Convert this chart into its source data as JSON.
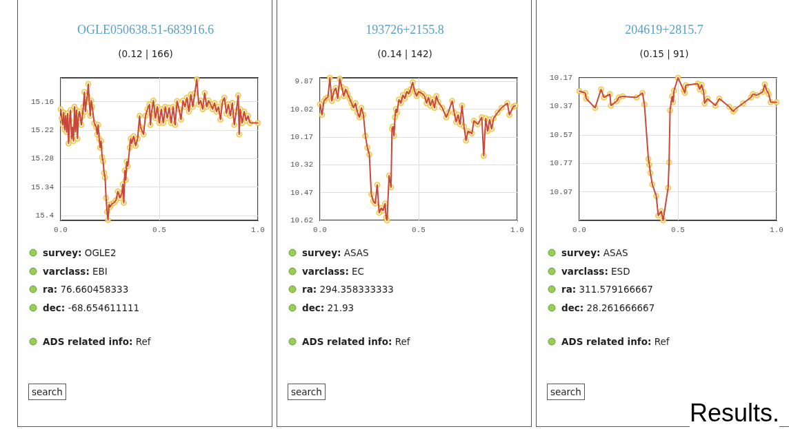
{
  "chart_data": [
    {
      "type": "line",
      "title": "OGLE050638.51-683916.6",
      "subtitle": "(0.12 | 166)",
      "xlim": [
        0,
        1
      ],
      "xticks": [
        {
          "value": 0,
          "label": "0.0"
        },
        {
          "value": 0.5,
          "label": "0.5"
        },
        {
          "value": 1,
          "label": "1.0"
        }
      ],
      "ylim": [
        15.41,
        15.11
      ],
      "yticks": [
        15.16,
        15.22,
        15.28,
        15.34,
        15.4
      ],
      "grid": true,
      "line_style": "solid",
      "x": [
        0,
        0.005,
        0.01,
        0.015,
        0.02,
        0.025,
        0.03,
        0.035,
        0.04,
        0.045,
        0.05,
        0.055,
        0.06,
        0.065,
        0.07,
        0.075,
        0.08,
        0.085,
        0.09,
        0.095,
        0.1,
        0.105,
        0.11,
        0.115,
        0.12,
        0.125,
        0.13,
        0.135,
        0.14,
        0.145,
        0.15,
        0.155,
        0.16,
        0.17,
        0.18,
        0.185,
        0.19,
        0.195,
        0.2,
        0.205,
        0.21,
        0.215,
        0.22,
        0.225,
        0.23,
        0.235,
        0.24,
        0.245,
        0.25,
        0.26,
        0.27,
        0.28,
        0.29,
        0.3,
        0.31,
        0.315,
        0.32,
        0.325,
        0.33,
        0.335,
        0.34,
        0.35,
        0.355,
        0.36,
        0.37,
        0.38,
        0.39,
        0.4,
        0.405,
        0.41,
        0.42,
        0.43,
        0.44,
        0.45,
        0.455,
        0.46,
        0.47,
        0.48,
        0.49,
        0.5,
        0.51,
        0.52,
        0.53,
        0.54,
        0.55,
        0.56,
        0.57,
        0.58,
        0.59,
        0.6,
        0.61,
        0.62,
        0.63,
        0.64,
        0.65,
        0.66,
        0.67,
        0.68,
        0.69,
        0.7,
        0.71,
        0.72,
        0.73,
        0.74,
        0.75,
        0.76,
        0.77,
        0.78,
        0.79,
        0.8,
        0.81,
        0.82,
        0.83,
        0.84,
        0.85,
        0.86,
        0.87,
        0.88,
        0.89,
        0.9,
        0.905,
        0.91,
        0.92,
        0.93,
        0.94,
        0.95,
        0.96,
        1.0
      ],
      "series": [
        {
          "marker": "none",
          "color": "#c8473c",
          "values": [
            15.176,
            15.195,
            15.209,
            15.183,
            15.219,
            15.19,
            15.224,
            15.185,
            15.248,
            15.2,
            15.178,
            15.238,
            15.214,
            15.243,
            15.171,
            15.224,
            15.178,
            15.238,
            15.19,
            15.181,
            15.195,
            15.209,
            15.19,
            15.171,
            15.14,
            15.181,
            15.161,
            15.147,
            15.123,
            15.161,
            15.19,
            15.158,
            15.171,
            15.205,
            15.214,
            15.229,
            15.209,
            15.238,
            15.257,
            15.243,
            15.277,
            15.286,
            15.31,
            15.32,
            15.363,
            15.392,
            15.409,
            15.377,
            15.382,
            15.375,
            15.373,
            15.368,
            15.349,
            15.363,
            15.353,
            15.334,
            15.373,
            15.305,
            15.325,
            15.286,
            15.296,
            15.257,
            15.238,
            15.248,
            15.233,
            15.253,
            15.238,
            15.19,
            15.214,
            15.219,
            15.229,
            15.19,
            15.176,
            15.166,
            15.209,
            15.185,
            15.158,
            15.195,
            15.171,
            15.205,
            15.176,
            15.205,
            15.171,
            15.195,
            15.173,
            15.205,
            15.171,
            15.209,
            15.159,
            15.176,
            15.198,
            15.158,
            15.171,
            15.152,
            15.181,
            15.145,
            15.171,
            15.142,
            15.113,
            15.166,
            15.158,
            15.176,
            15.142,
            15.171,
            15.158,
            15.166,
            15.176,
            15.163,
            15.181,
            15.171,
            15.198,
            15.161,
            15.152,
            15.185,
            15.166,
            15.19,
            15.163,
            15.209,
            15.181,
            15.147,
            15.229,
            15.176,
            15.205,
            15.181,
            15.2,
            15.19,
            15.205,
            15.205
          ]
        },
        {
          "type": "scatter",
          "marker": "circle",
          "color": "#f0c030",
          "values": [
            15.176,
            15.195,
            15.209,
            15.183,
            15.219,
            15.19,
            15.224,
            15.185,
            15.248,
            15.2,
            15.178,
            15.238,
            15.214,
            15.243,
            15.171,
            15.224,
            15.178,
            15.238,
            15.19,
            15.181,
            15.195,
            15.209,
            15.19,
            15.171,
            15.14,
            15.181,
            15.161,
            15.147,
            15.123,
            15.161,
            15.19,
            15.158,
            15.171,
            15.205,
            15.214,
            15.229,
            15.209,
            15.238,
            15.257,
            15.243,
            15.277,
            15.286,
            15.31,
            15.32,
            15.363,
            15.392,
            15.409,
            15.377,
            15.382,
            15.375,
            15.373,
            15.368,
            15.349,
            15.363,
            15.353,
            15.334,
            15.373,
            15.305,
            15.325,
            15.286,
            15.296,
            15.257,
            15.238,
            15.248,
            15.233,
            15.253,
            15.238,
            15.19,
            15.214,
            15.219,
            15.229,
            15.19,
            15.176,
            15.166,
            15.209,
            15.185,
            15.158,
            15.195,
            15.171,
            15.205,
            15.176,
            15.205,
            15.171,
            15.195,
            15.173,
            15.205,
            15.171,
            15.209,
            15.159,
            15.176,
            15.198,
            15.158,
            15.171,
            15.152,
            15.181,
            15.145,
            15.171,
            15.142,
            15.113,
            15.166,
            15.158,
            15.176,
            15.142,
            15.171,
            15.158,
            15.166,
            15.176,
            15.163,
            15.181,
            15.171,
            15.198,
            15.161,
            15.152,
            15.185,
            15.166,
            15.19,
            15.163,
            15.209,
            15.181,
            15.147,
            15.229,
            15.176,
            15.205,
            15.181,
            15.2,
            15.19,
            15.205,
            15.205
          ]
        }
      ],
      "annotations": [
        "survey: OGLE2",
        "varclass: EBI",
        "ra: 76.660458333",
        "dec: -68.654611111",
        "ADS related info: Ref",
        "search"
      ]
    },
    {
      "type": "line",
      "title": "193726+2155.8",
      "subtitle": "(0.14 | 142)",
      "xlim": [
        0,
        1
      ],
      "xticks": [
        {
          "value": 0,
          "label": "0.0"
        },
        {
          "value": 0.5,
          "label": "0.5"
        },
        {
          "value": 1,
          "label": "1.0"
        }
      ],
      "ylim": [
        10.62,
        9.85
      ],
      "yticks": [
        9.87,
        10.02,
        10.17,
        10.32,
        10.47,
        10.62
      ],
      "grid": true,
      "line_style": "solid",
      "x": [
        0,
        0.01,
        0.02,
        0.03,
        0.04,
        0.05,
        0.06,
        0.07,
        0.08,
        0.09,
        0.1,
        0.11,
        0.12,
        0.13,
        0.14,
        0.15,
        0.16,
        0.17,
        0.18,
        0.19,
        0.2,
        0.21,
        0.22,
        0.23,
        0.24,
        0.25,
        0.26,
        0.27,
        0.28,
        0.29,
        0.3,
        0.31,
        0.32,
        0.33,
        0.335,
        0.34,
        0.35,
        0.36,
        0.365,
        0.37,
        0.375,
        0.38,
        0.385,
        0.39,
        0.4,
        0.41,
        0.42,
        0.43,
        0.44,
        0.45,
        0.46,
        0.47,
        0.48,
        0.49,
        0.5,
        0.52,
        0.53,
        0.54,
        0.55,
        0.56,
        0.57,
        0.58,
        0.59,
        0.6,
        0.62,
        0.64,
        0.65,
        0.67,
        0.68,
        0.69,
        0.7,
        0.71,
        0.72,
        0.73,
        0.74,
        0.75,
        0.77,
        0.78,
        0.8,
        0.82,
        0.83,
        0.84,
        0.85,
        0.86,
        0.87,
        0.88,
        0.9,
        0.92,
        0.95,
        0.96,
        0.98,
        0.99
      ],
      "series": [
        {
          "marker": "none",
          "color": "#c8473c",
          "values": [
            9.993,
            10.05,
            9.975,
            9.962,
            9.956,
            9.85,
            9.975,
            9.924,
            9.905,
            9.962,
            9.855,
            9.899,
            9.949,
            9.911,
            9.937,
            9.962,
            9.987,
            10.012,
            9.987,
            10.038,
            10.063,
            10.012,
            10.05,
            10.164,
            10.227,
            10.264,
            10.479,
            10.516,
            10.529,
            10.428,
            10.579,
            10.554,
            10.567,
            10.529,
            10.605,
            10.62,
            10.378,
            10.441,
            10.126,
            10.113,
            10.164,
            10.063,
            10.019,
            10.038,
            9.968,
            9.987,
            9.943,
            9.962,
            9.924,
            9.937,
            9.911,
            9.874,
            9.924,
            9.949,
            9.924,
            9.937,
            9.949,
            9.987,
            9.956,
            10.0,
            9.968,
            10.012,
            9.949,
            9.981,
            10.012,
            10.063,
            10.038,
            9.975,
            10.038,
            10.088,
            10.05,
            10.101,
            10.0,
            10.113,
            10.189,
            10.138,
            10.151,
            10.082,
            10.101,
            10.063,
            10.271,
            10.069,
            10.138,
            10.075,
            10.126,
            10.069,
            10.038,
            10.012,
            9.987,
            10.05,
            10.006,
            10.0
          ]
        },
        {
          "type": "scatter",
          "marker": "circle",
          "color": "#f0c030",
          "values": [
            9.993,
            10.05,
            9.975,
            9.962,
            9.956,
            9.85,
            9.975,
            9.924,
            9.905,
            9.962,
            9.855,
            9.899,
            9.949,
            9.911,
            9.937,
            9.962,
            9.987,
            10.012,
            9.987,
            10.038,
            10.063,
            10.012,
            10.05,
            10.164,
            10.227,
            10.264,
            10.479,
            10.516,
            10.529,
            10.428,
            10.579,
            10.554,
            10.567,
            10.529,
            10.605,
            10.62,
            10.378,
            10.441,
            10.126,
            10.113,
            10.164,
            10.063,
            10.019,
            10.038,
            9.968,
            9.987,
            9.943,
            9.962,
            9.924,
            9.937,
            9.911,
            9.874,
            9.924,
            9.949,
            9.924,
            9.937,
            9.949,
            9.987,
            9.956,
            10.0,
            9.968,
            10.012,
            9.949,
            9.981,
            10.012,
            10.063,
            10.038,
            9.975,
            10.038,
            10.088,
            10.05,
            10.101,
            10.0,
            10.113,
            10.189,
            10.138,
            10.151,
            10.082,
            10.101,
            10.063,
            10.271,
            10.069,
            10.138,
            10.075,
            10.126,
            10.069,
            10.038,
            10.012,
            9.987,
            10.05,
            10.006,
            10.0
          ]
        }
      ],
      "annotations": [
        "survey: ASAS",
        "varclass: EC",
        "ra: 294.358333333",
        "dec: 21.93",
        "ADS related info: Ref",
        "search"
      ]
    },
    {
      "type": "line",
      "title": "204619+2815.7",
      "subtitle": "(0.15 | 91)",
      "xlim": [
        0,
        1
      ],
      "xticks": [
        {
          "value": 0,
          "label": "0.0"
        },
        {
          "value": 0.5,
          "label": "0.5"
        },
        {
          "value": 1,
          "label": "1.0"
        }
      ],
      "ylim": [
        11.17,
        10.17
      ],
      "yticks": [
        10.17,
        10.37,
        10.57,
        10.77,
        10.97
      ],
      "grid": true,
      "line_style": "solid",
      "x": [
        0,
        0.03,
        0.035,
        0.08,
        0.11,
        0.125,
        0.155,
        0.16,
        0.19,
        0.2,
        0.22,
        0.29,
        0.32,
        0.33,
        0.35,
        0.355,
        0.36,
        0.37,
        0.39,
        0.4,
        0.415,
        0.425,
        0.45,
        0.455,
        0.46,
        0.47,
        0.475,
        0.48,
        0.5,
        0.53,
        0.535,
        0.54,
        0.6,
        0.61,
        0.62,
        0.63,
        0.635,
        0.65,
        0.69,
        0.71,
        0.76,
        0.78,
        0.79,
        0.83,
        0.87,
        0.88,
        0.9,
        0.93,
        0.94,
        0.95,
        0.96,
        0.97,
        1.0
      ],
      "series": [
        {
          "marker": "none",
          "color": "#c8473c",
          "values": [
            10.263,
            10.276,
            10.316,
            10.381,
            10.251,
            10.308,
            10.284,
            10.365,
            10.333,
            10.308,
            10.3,
            10.308,
            10.276,
            10.357,
            10.739,
            10.78,
            10.837,
            10.918,
            10.999,
            11.137,
            11.105,
            11.17,
            10.942,
            10.763,
            10.398,
            10.3,
            10.341,
            10.259,
            10.17,
            10.259,
            10.276,
            10.222,
            10.211,
            10.251,
            10.219,
            10.268,
            10.349,
            10.316,
            10.365,
            10.316,
            10.373,
            10.406,
            10.39,
            10.349,
            10.308,
            10.284,
            10.292,
            10.268,
            10.216,
            10.259,
            10.284,
            10.341,
            10.341
          ]
        },
        {
          "type": "scatter",
          "marker": "circle",
          "color": "#f0c030",
          "values": [
            10.263,
            10.276,
            10.316,
            10.381,
            10.251,
            10.308,
            10.284,
            10.365,
            10.333,
            10.308,
            10.3,
            10.308,
            10.276,
            10.357,
            10.739,
            10.78,
            10.837,
            10.918,
            10.999,
            11.137,
            11.105,
            11.17,
            10.942,
            10.763,
            10.398,
            10.3,
            10.341,
            10.259,
            10.17,
            10.259,
            10.276,
            10.222,
            10.211,
            10.251,
            10.219,
            10.268,
            10.349,
            10.316,
            10.365,
            10.316,
            10.373,
            10.406,
            10.39,
            10.349,
            10.308,
            10.284,
            10.292,
            10.268,
            10.216,
            10.259,
            10.284,
            10.341,
            10.341
          ]
        }
      ],
      "annotations": [
        "survey: ASAS",
        "varclass: ESD",
        "ra: 311.579166667",
        "dec: 28.261666667",
        "ADS related info: Ref",
        "search",
        "Results."
      ]
    }
  ]
}
